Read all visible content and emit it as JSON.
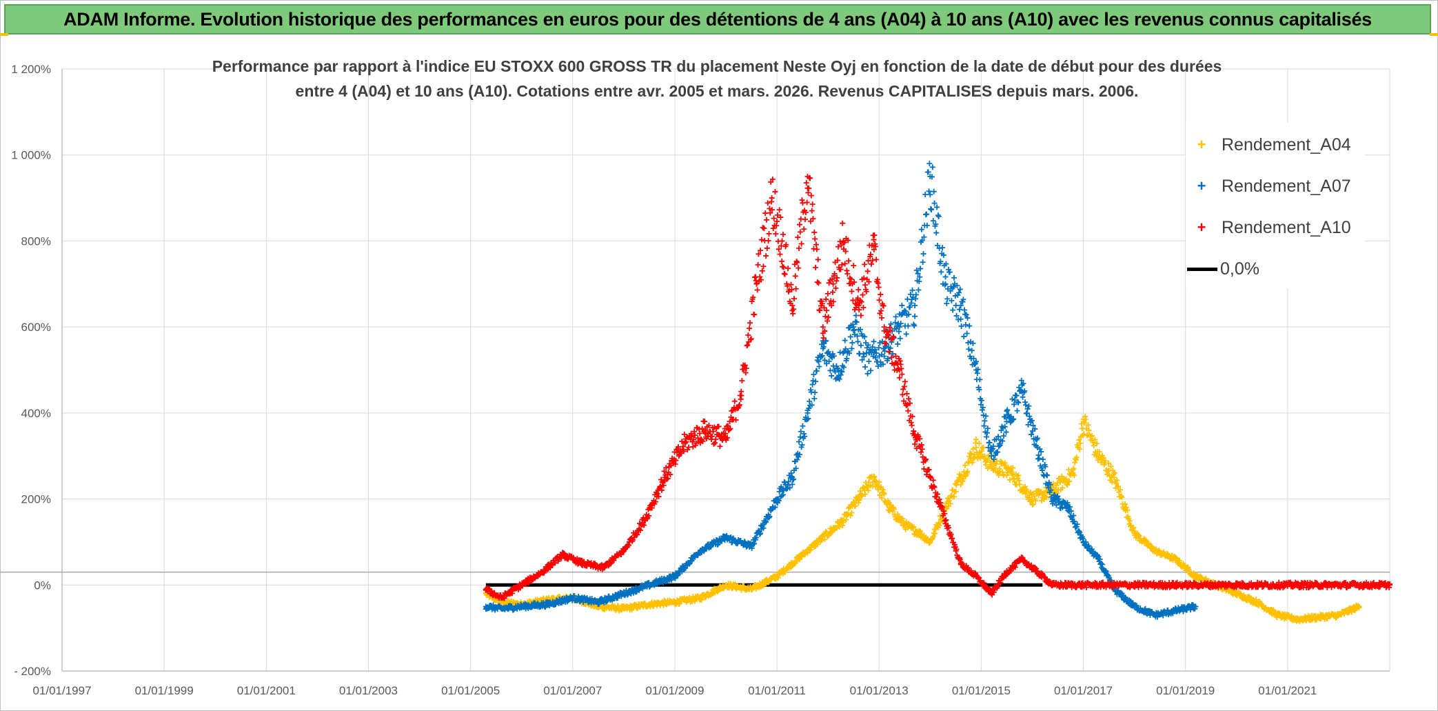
{
  "header": {
    "title": "ADAM Informe. Evolution historique des performances en euros pour des détentions de 4 ans (A04) à 10 ans (A10) avec les revenus connus capitalisés"
  },
  "chart_data": {
    "type": "scatter",
    "title_line1": "Performance par rapport à l'indice EU STOXX 600 GROSS TR  du placement Neste Oyj en fonction de la date de début pour des durées",
    "title_line2": "entre 4 (A04) et 10 ans (A10). Cotations entre avr. 2005 et mars. 2026. Revenus CAPITALISES depuis mars. 2006.",
    "x_ticks": [
      "01/01/1997",
      "01/01/1999",
      "01/01/2001",
      "01/01/2003",
      "01/01/2005",
      "01/01/2007",
      "01/01/2009",
      "01/01/2011",
      "01/01/2013",
      "01/01/2015",
      "01/01/2017",
      "01/01/2019",
      "01/01/2021"
    ],
    "xlim": [
      1997.0,
      2023.0
    ],
    "y_ticks": [
      "- 200%",
      "0%",
      "200%",
      "400%",
      "600%",
      "800%",
      "1 000%",
      "1 200%"
    ],
    "ylim": [
      -200,
      1200
    ],
    "grid": true,
    "legend": {
      "position": "top-right",
      "entries": [
        "Rendement_A04",
        "Rendement_A07",
        "Rendement_A10",
        "0,0%"
      ]
    },
    "colors": {
      "A04": "#FFC000",
      "A07": "#0070C0",
      "A10": "#FF0000",
      "zero": "#000000",
      "grid": "#d9d9d9",
      "axis_text": "#595959"
    },
    "series": [
      {
        "name": "Rendement_A04",
        "key": "A04",
        "x": [
          2005.3,
          2005.6,
          2006.0,
          2006.5,
          2007.0,
          2007.5,
          2008.0,
          2008.5,
          2009.0,
          2009.5,
          2010.0,
          2010.5,
          2011.0,
          2011.3,
          2011.6,
          2012.0,
          2012.3,
          2012.6,
          2012.9,
          2013.2,
          2013.5,
          2013.8,
          2014.0,
          2014.3,
          2014.6,
          2014.9,
          2015.2,
          2015.6,
          2016.0,
          2016.4,
          2016.8,
          2017.0,
          2017.3,
          2017.6,
          2018.0,
          2018.4,
          2018.8,
          2019.2,
          2019.6,
          2020.0,
          2020.4,
          2020.8,
          2021.2,
          2021.6,
          2022.0,
          2022.4
        ],
        "values": [
          -20,
          -40,
          -45,
          -35,
          -30,
          -50,
          -55,
          -45,
          -40,
          -30,
          0,
          -10,
          20,
          50,
          80,
          120,
          150,
          200,
          250,
          180,
          140,
          120,
          100,
          180,
          250,
          320,
          280,
          260,
          200,
          220,
          260,
          380,
          300,
          250,
          120,
          80,
          60,
          20,
          0,
          -20,
          -40,
          -70,
          -80,
          -75,
          -70,
          -50
        ]
      },
      {
        "name": "Rendement_A07",
        "key": "A07",
        "x": [
          2005.3,
          2005.6,
          2006.0,
          2006.5,
          2007.0,
          2007.5,
          2008.0,
          2008.5,
          2009.0,
          2009.5,
          2010.0,
          2010.5,
          2011.0,
          2011.3,
          2011.6,
          2011.9,
          2012.2,
          2012.5,
          2012.8,
          2013.1,
          2013.4,
          2013.7,
          2014.0,
          2014.3,
          2014.6,
          2014.9,
          2015.2,
          2015.5,
          2015.8,
          2016.1,
          2016.4,
          2016.7,
          2017.0,
          2017.3,
          2017.6,
          2018.0,
          2018.4,
          2018.8,
          2019.2
        ],
        "values": [
          -50,
          -55,
          -50,
          -45,
          -30,
          -40,
          -20,
          0,
          20,
          80,
          110,
          90,
          200,
          250,
          400,
          550,
          500,
          600,
          520,
          550,
          600,
          650,
          950,
          700,
          650,
          500,
          300,
          380,
          450,
          320,
          200,
          180,
          100,
          60,
          -10,
          -50,
          -70,
          -60,
          -50
        ]
      },
      {
        "name": "Rendement_A10",
        "key": "A10",
        "x": [
          2005.3,
          2005.6,
          2006.0,
          2006.4,
          2006.8,
          2007.2,
          2007.6,
          2008.0,
          2008.4,
          2008.8,
          2009.2,
          2009.6,
          2010.0,
          2010.3,
          2010.6,
          2010.9,
          2011.1,
          2011.3,
          2011.6,
          2011.9,
          2012.1,
          2012.3,
          2012.6,
          2012.9,
          2013.1,
          2013.4,
          2013.7,
          2014.0,
          2014.3,
          2014.6,
          2014.9,
          2015.2,
          2015.5,
          2015.8,
          2016.1,
          2016.4,
          2017.0,
          2018.0,
          2019.0,
          2020.0,
          2021.0,
          2022.0,
          2023.0
        ],
        "values": [
          -10,
          -30,
          0,
          30,
          70,
          50,
          40,
          80,
          150,
          250,
          330,
          360,
          340,
          450,
          700,
          900,
          800,
          650,
          950,
          600,
          700,
          800,
          650,
          780,
          600,
          500,
          350,
          250,
          150,
          50,
          20,
          -20,
          30,
          60,
          30,
          0,
          0,
          0,
          0,
          0,
          0,
          0,
          0
        ]
      },
      {
        "name": "0,0%",
        "key": "zero",
        "x": [
          2005.3,
          2016.2
        ],
        "values": [
          0,
          0
        ]
      }
    ]
  }
}
